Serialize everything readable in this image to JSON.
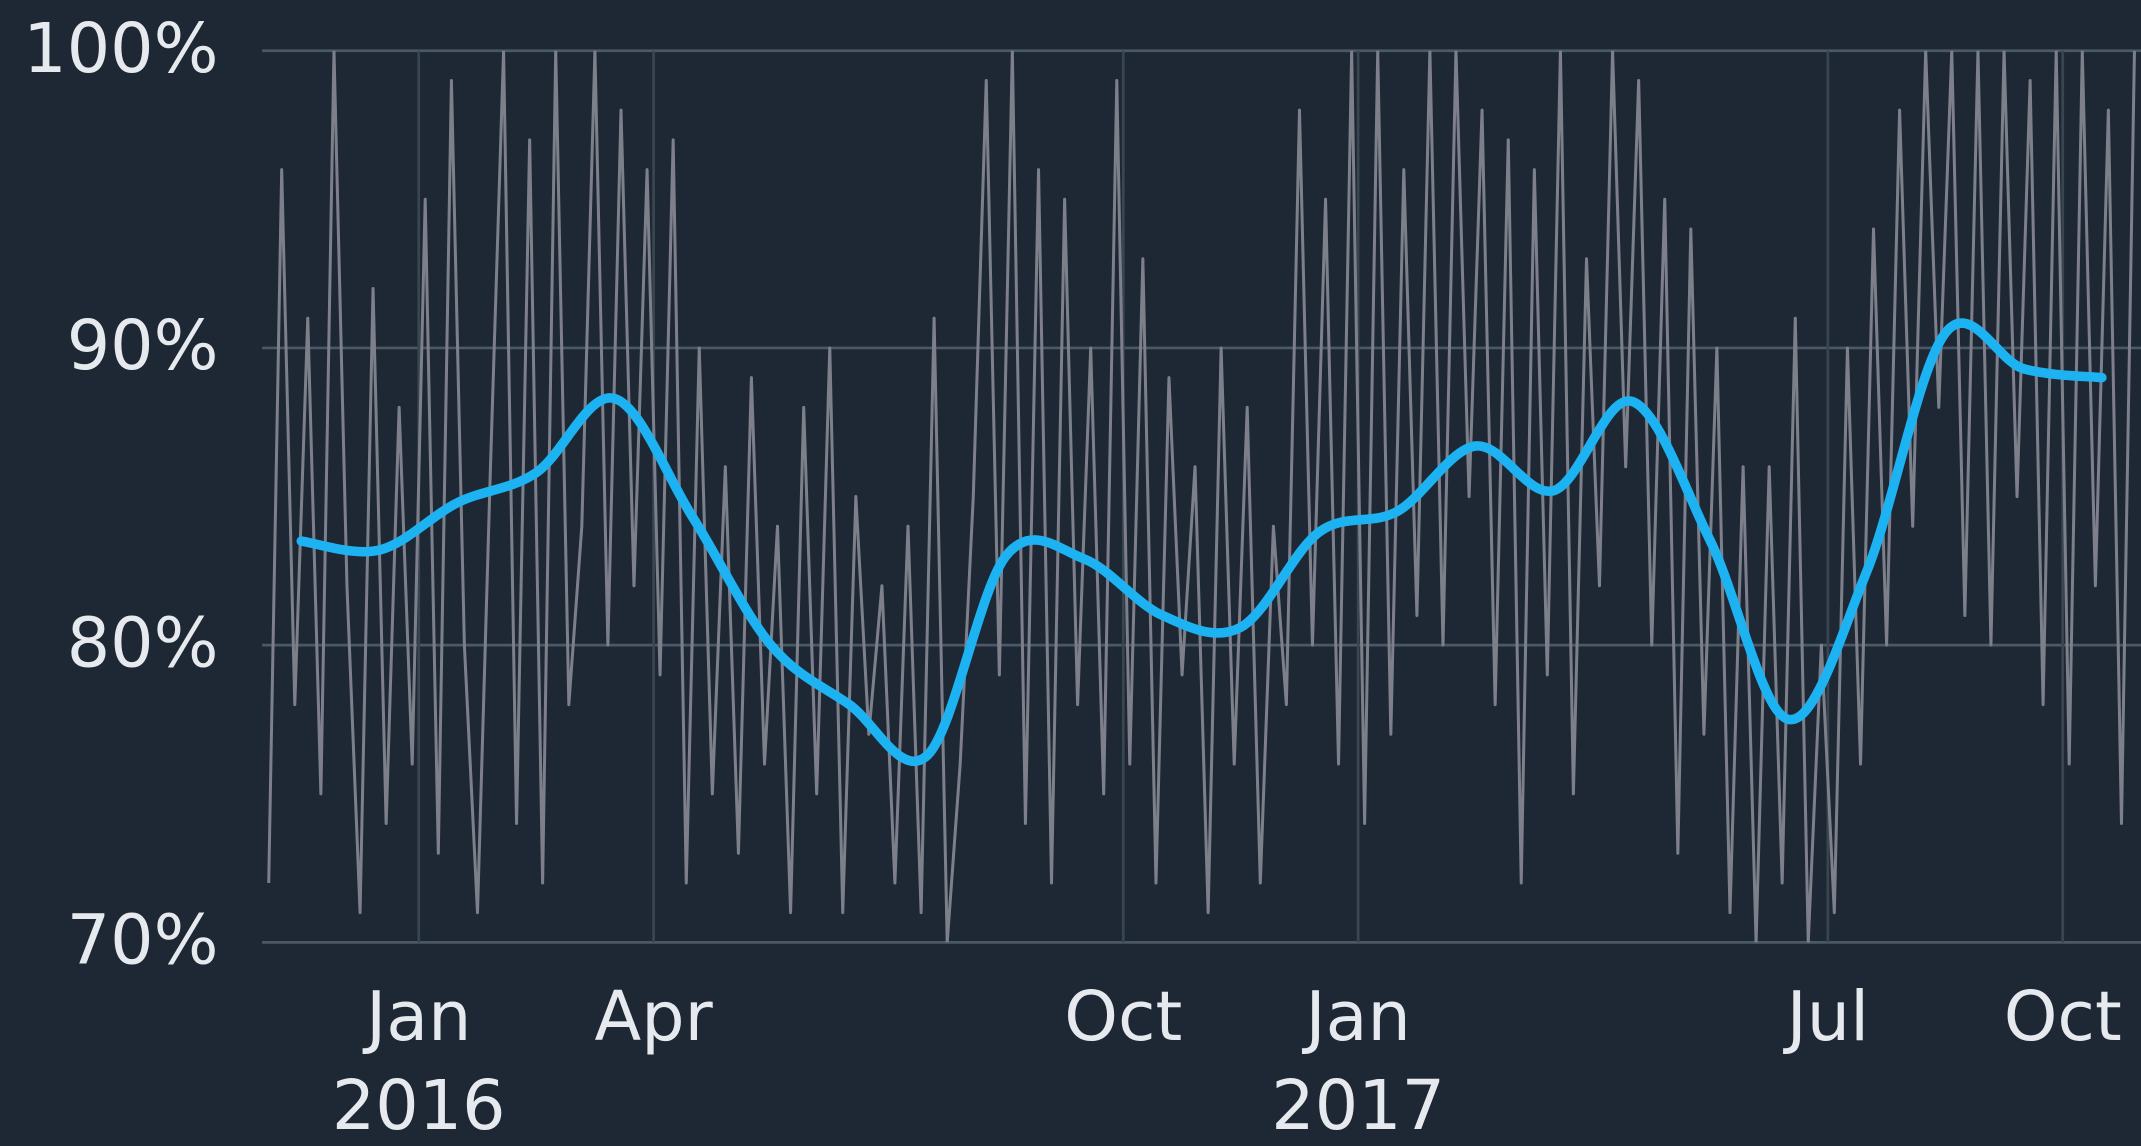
{
  "chart_data": {
    "type": "line",
    "x": [
      "2015-11",
      "2015-12",
      "2016-01",
      "2016-02",
      "2016-03",
      "2016-04",
      "2016-05",
      "2016-06",
      "2016-07",
      "2016-08",
      "2016-09",
      "2016-10",
      "2016-11",
      "2016-12",
      "2017-01",
      "2017-02",
      "2017-03",
      "2017-04",
      "2017-05",
      "2017-06",
      "2017-07",
      "2017-08",
      "2017-09",
      "2017-10"
    ],
    "xlim": [
      "2015-11",
      "2017-11"
    ],
    "xticks": [
      {
        "value": "2016-01",
        "label": "Jan",
        "year": "2016"
      },
      {
        "value": "2016-04",
        "label": "Apr"
      },
      {
        "value": "2016-10",
        "label": "Oct"
      },
      {
        "value": "2017-01",
        "label": "Jan",
        "year": "2017"
      },
      {
        "value": "2017-07",
        "label": "Jul"
      },
      {
        "value": "2017-10",
        "label": "Oct"
      }
    ],
    "ylim": [
      70,
      100
    ],
    "yticks": [
      {
        "value": 70,
        "label": "70%"
      },
      {
        "value": 80,
        "label": "80%"
      },
      {
        "value": 90,
        "label": "90%"
      },
      {
        "value": 100,
        "label": "100%"
      }
    ],
    "grid": true,
    "series": [
      {
        "color": "#7d808b",
        "style": "raw",
        "values": [
          [
            72,
            96,
            78,
            91,
            75,
            100
          ],
          [
            82,
            71,
            92,
            74,
            88,
            76
          ],
          [
            95,
            73,
            99,
            80,
            71,
            86
          ],
          [
            100,
            74,
            97,
            72,
            100,
            78
          ],
          [
            84,
            100,
            80,
            98,
            82,
            96
          ],
          [
            79,
            97,
            72,
            90,
            75,
            86
          ],
          [
            73,
            89,
            76,
            84,
            71,
            88
          ],
          [
            75,
            90,
            71,
            85,
            77,
            82
          ],
          [
            72,
            84,
            71,
            91,
            70,
            76
          ],
          [
            85,
            99,
            79,
            100,
            74,
            96
          ],
          [
            72,
            95,
            78,
            90,
            75,
            99
          ],
          [
            76,
            93,
            72,
            89,
            79,
            86
          ],
          [
            71,
            90,
            76,
            88,
            72,
            84
          ],
          [
            78,
            98,
            80,
            95,
            76,
            100
          ],
          [
            74,
            100,
            77,
            96,
            81,
            100
          ],
          [
            80,
            100,
            85,
            98,
            78,
            97
          ],
          [
            72,
            96,
            79,
            100,
            75,
            93
          ],
          [
            82,
            100,
            86,
            99,
            80,
            95
          ],
          [
            73,
            94,
            77,
            90,
            71,
            86
          ],
          [
            70,
            86,
            72,
            91,
            70,
            80
          ],
          [
            71,
            90,
            76,
            94,
            80,
            98
          ],
          [
            84,
            100,
            88,
            100,
            81,
            100
          ],
          [
            80,
            100,
            85,
            99,
            78,
            100
          ],
          [
            76,
            100,
            82,
            98,
            74,
            100
          ]
        ]
      },
      {
        "color": "#1db3f2",
        "style": "smooth",
        "values": [
          83.5,
          83.2,
          84.8,
          85.8,
          88.3,
          84.3,
          80.0,
          78.0,
          76.3,
          83.0,
          82.9,
          81.0,
          80.6,
          83.8,
          84.5,
          86.7,
          85.2,
          88.2,
          83.5,
          77.5,
          82.5,
          90.5,
          89.3,
          89.0
        ]
      }
    ]
  }
}
